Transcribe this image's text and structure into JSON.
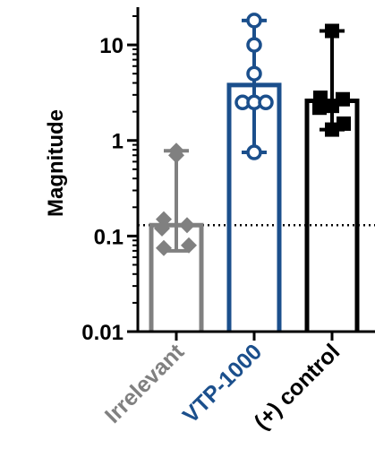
{
  "chart_data": {
    "type": "bar",
    "ylabel": "Magnitude",
    "yscale": "log",
    "ylim": [
      0.01,
      20
    ],
    "yticks": [
      {
        "value": 0.01,
        "label": "0.01"
      },
      {
        "value": 0.1,
        "label": "0.1"
      },
      {
        "value": 1,
        "label": "1"
      },
      {
        "value": 10,
        "label": "10"
      }
    ],
    "threshold": 0.13,
    "categories": [
      "Irrelevant",
      "VTP-1000",
      "(+) control"
    ],
    "series": [
      {
        "category": "Irrelevant",
        "color": "#808080",
        "marker": "diamond",
        "bar_value": 0.13,
        "error_low": 0.07,
        "error_high": 0.78,
        "points": [
          0.78,
          0.7,
          0.15,
          0.13,
          0.12,
          0.08,
          0.075
        ]
      },
      {
        "category": "VTP-1000",
        "color": "#1b4f8c",
        "marker": "circle",
        "bar_value": 3.8,
        "error_low": 0.75,
        "error_high": 18,
        "points": [
          18,
          10,
          5,
          2.5,
          2.5,
          2.5,
          0.75
        ]
      },
      {
        "category": "(+) control",
        "color": "#000000",
        "marker": "square",
        "bar_value": 2.6,
        "error_low": 1.3,
        "error_high": 14,
        "points": [
          14,
          2.8,
          2.7,
          2.3,
          2.2,
          1.5,
          1.3
        ]
      }
    ]
  }
}
